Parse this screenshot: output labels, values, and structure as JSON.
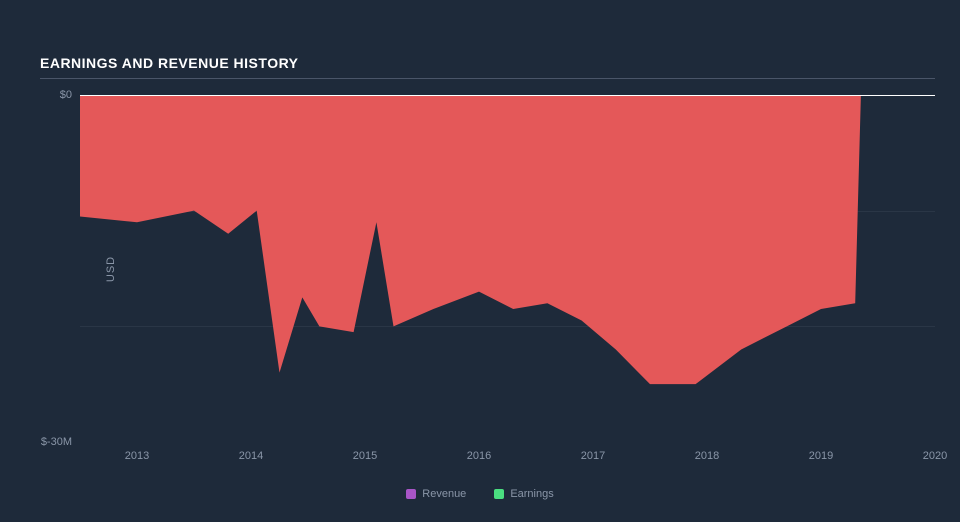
{
  "chart": {
    "type": "area",
    "title": "EARNINGS AND REVENUE HISTORY",
    "background_color": "#1e2a3a",
    "grid_color": "#2a3646",
    "baseline_color": "#ffffff",
    "title_color": "#ffffff",
    "axis_label_color": "#8a96a8",
    "tick_color": "#8a96a8",
    "title_fontsize": 14,
    "tick_fontsize": 11,
    "y_axis": {
      "label": "USD",
      "min": -30,
      "max": 0,
      "ticks": [
        {
          "value": 0,
          "label": "$0"
        },
        {
          "value": -30,
          "label": "$-30M"
        }
      ],
      "gridlines": [
        -10,
        -20
      ]
    },
    "x_axis": {
      "min": 2012.5,
      "max": 2020,
      "ticks": [
        2013,
        2014,
        2015,
        2016,
        2017,
        2018,
        2019,
        2020
      ]
    },
    "series": [
      {
        "name": "Revenue",
        "legend_color": "#a855c7",
        "fill_color": "#ef5b5b",
        "fill_opacity": 0.95,
        "points": [
          [
            2012.5,
            -10.5
          ],
          [
            2013.0,
            -11.0
          ],
          [
            2013.5,
            -10.0
          ],
          [
            2013.8,
            -12.0
          ],
          [
            2014.05,
            -10.0
          ],
          [
            2014.25,
            -24.0
          ],
          [
            2014.45,
            -17.5
          ],
          [
            2014.6,
            -20.0
          ],
          [
            2014.9,
            -20.5
          ],
          [
            2015.1,
            -11.0
          ],
          [
            2015.25,
            -20.0
          ],
          [
            2015.6,
            -18.5
          ],
          [
            2016.0,
            -17.0
          ],
          [
            2016.3,
            -18.5
          ],
          [
            2016.6,
            -18.0
          ],
          [
            2016.9,
            -19.5
          ],
          [
            2017.2,
            -22.0
          ],
          [
            2017.5,
            -25.0
          ],
          [
            2017.9,
            -25.0
          ],
          [
            2018.3,
            -22.0
          ],
          [
            2018.7,
            -20.0
          ],
          [
            2019.0,
            -18.5
          ],
          [
            2019.3,
            -18.0
          ],
          [
            2019.35,
            0.0
          ]
        ]
      },
      {
        "name": "Earnings",
        "legend_color": "#4ade80",
        "fill_color": "#4ade80",
        "fill_opacity": 0,
        "points": []
      }
    ],
    "legend": {
      "position": "bottom-center",
      "items": [
        {
          "label": "Revenue",
          "color": "#a855c7"
        },
        {
          "label": "Earnings",
          "color": "#4ade80"
        }
      ]
    }
  }
}
